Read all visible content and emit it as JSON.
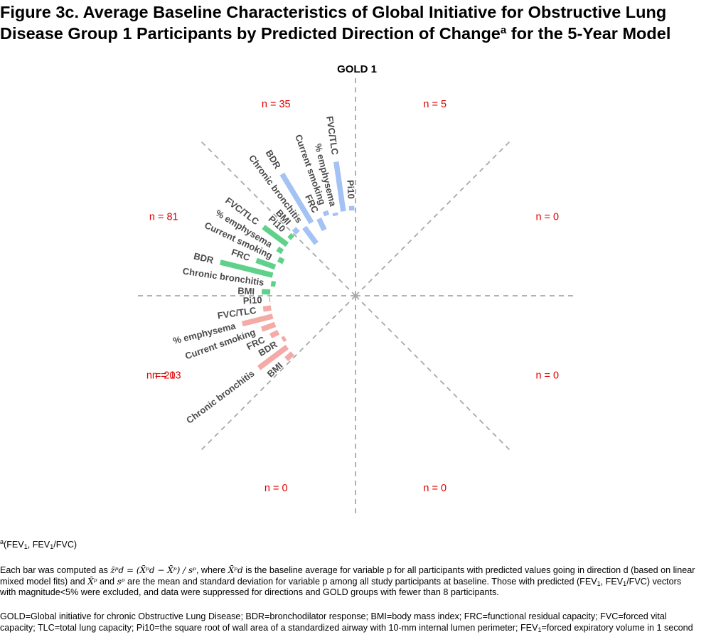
{
  "figure": {
    "title_main": "Figure 3c. Average Baseline Characteristics of Global Initiative for Obstructive Lung Disease Group 1 Participants by Predicted Direction of Change",
    "title_sup": "a",
    "title_tail": " for the 5-Year Model"
  },
  "chart_data": {
    "type": "bar",
    "subtype": "polar",
    "title": "GOLD 1",
    "directions": [
      {
        "angle_deg": 112.5,
        "count_label": "n =  35",
        "color": "#a4c2f4",
        "categories": [
          "BMI",
          "Chronic bronchitis",
          "BDR",
          "FRC",
          "Current smoking",
          "% emphysema",
          "FVC/TLC",
          "Pi10"
        ],
        "values": [
          0.1,
          -0.35,
          1.0,
          -0.22,
          0.08,
          -0.05,
          0.88,
          0.08
        ]
      },
      {
        "angle_deg": 157.5,
        "count_label": "n =  81",
        "color": "#5fd18a",
        "categories": [
          "BMI",
          "Chronic bronchitis",
          "BDR",
          "FRC",
          "Current smoking",
          "% emphysema",
          "FVC/TLC",
          "Pi10"
        ],
        "values": [
          0.15,
          -0.08,
          0.95,
          0.35,
          -0.1,
          0.1,
          0.52,
          0.08
        ]
      },
      {
        "angle_deg": 202.5,
        "count_label": "n =  213",
        "color": "#f4aaa6",
        "categories": [
          "BMI",
          "Chronic bronchitis",
          "BDR",
          "FRC",
          "Current smoking",
          "% emphysema",
          "FVC/TLC",
          "Pi10"
        ],
        "values": [
          0.15,
          0.62,
          -0.06,
          0.15,
          0.25,
          0.55,
          0.14,
          0.02
        ]
      },
      {
        "angle_deg": 67.5,
        "count_label": "n =  5"
      },
      {
        "angle_deg": 22.5,
        "count_label": "n =  0"
      },
      {
        "angle_deg": -22.5,
        "count_label": "n =  0"
      },
      {
        "angle_deg": -67.5,
        "count_label": "n =  0"
      },
      {
        "angle_deg": -112.5,
        "count_label": "n =  0"
      },
      {
        "angle_deg": -157.5,
        "count_label": "n =  0"
      }
    ],
    "grid": true,
    "count_color": "#e00000"
  },
  "footnotes": {
    "sup_a": "a",
    "fev_note_1": "(FEV",
    "fev_sub_1": "1",
    "fev_note_2": ", FEV",
    "fev_sub_2": "1",
    "fev_note_3": "/FVC)",
    "p1": "Each bar was computed as ",
    "formula": "z̄ᵖd = (X̄ᵖd − X̄ᵖ) / sᵖ",
    "p2": ", where ",
    "formula2": "X̄ᵖd",
    "p3": " is the baseline average for variable p for all participants with predicted values going in direction d (based on linear mixed model fits) and ",
    "formula3": "X̄ᵖ",
    "p4": " and ",
    "formula4": "sᵖ",
    "p5": " are the mean and standard deviation for variable p among all study participants at baseline.  Those with predicted (FEV",
    "p5_sub": "1",
    "p6": ", FEV",
    "p6_sub": "1",
    "p7": "/FVC) vectors with magnitude<5% were excluded, and data were suppressed for directions and GOLD groups with fewer than 8 participants.",
    "abbrev_1": "GOLD=Global initiative for chronic Obstructive Lung Disease; BDR=bronchodilator response; BMI=body mass index; FRC=functional residual capacity; FVC=forced vital capacity; TLC=total lung capacity; Pi10=the square root of wall area of a standardized airway with 10-mm internal lumen perimeter; FEV",
    "abbrev_sub": "1",
    "abbrev_2": "=forced expiratory volume in 1 second"
  }
}
